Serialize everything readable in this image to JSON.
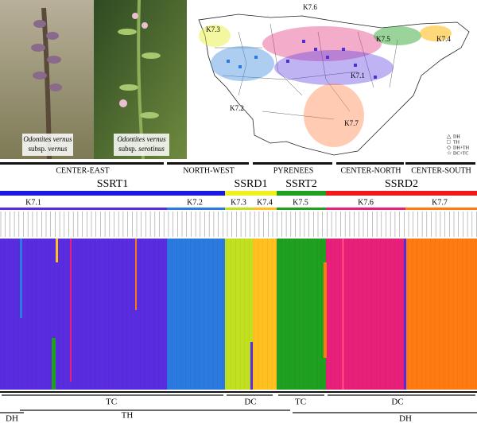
{
  "photos": [
    {
      "species": "Odontites vernus",
      "subspecies": "subsp.",
      "epithet": "vernus"
    },
    {
      "species": "Odontites vernus",
      "subspecies": "subsp.",
      "epithet": "serotinus"
    }
  ],
  "map": {
    "clusters": [
      "K7.3",
      "K7.6",
      "K7.1",
      "K7.2",
      "K7.5",
      "K7.4",
      "K7.7"
    ],
    "legend": [
      "DH",
      "TH",
      "DH+TH",
      "DC+TC"
    ]
  },
  "regions": [
    "CENTER-EAST",
    "NORTH-WEST",
    "PYRENEES",
    "CENTER-NORTH",
    "CENTER-SOUTH"
  ],
  "groups": [
    "SSRT1",
    "SSRD1",
    "SSRT2",
    "SSRD2"
  ],
  "clusters": [
    "K7.1",
    "K7.2",
    "K7.3",
    "K7.4",
    "K7.5",
    "K7.6",
    "K7.7"
  ],
  "bottom": {
    "upper": [
      "TC",
      "DC",
      "TC",
      "DC"
    ],
    "lower": [
      "DH",
      "TH",
      "DH"
    ]
  }
}
